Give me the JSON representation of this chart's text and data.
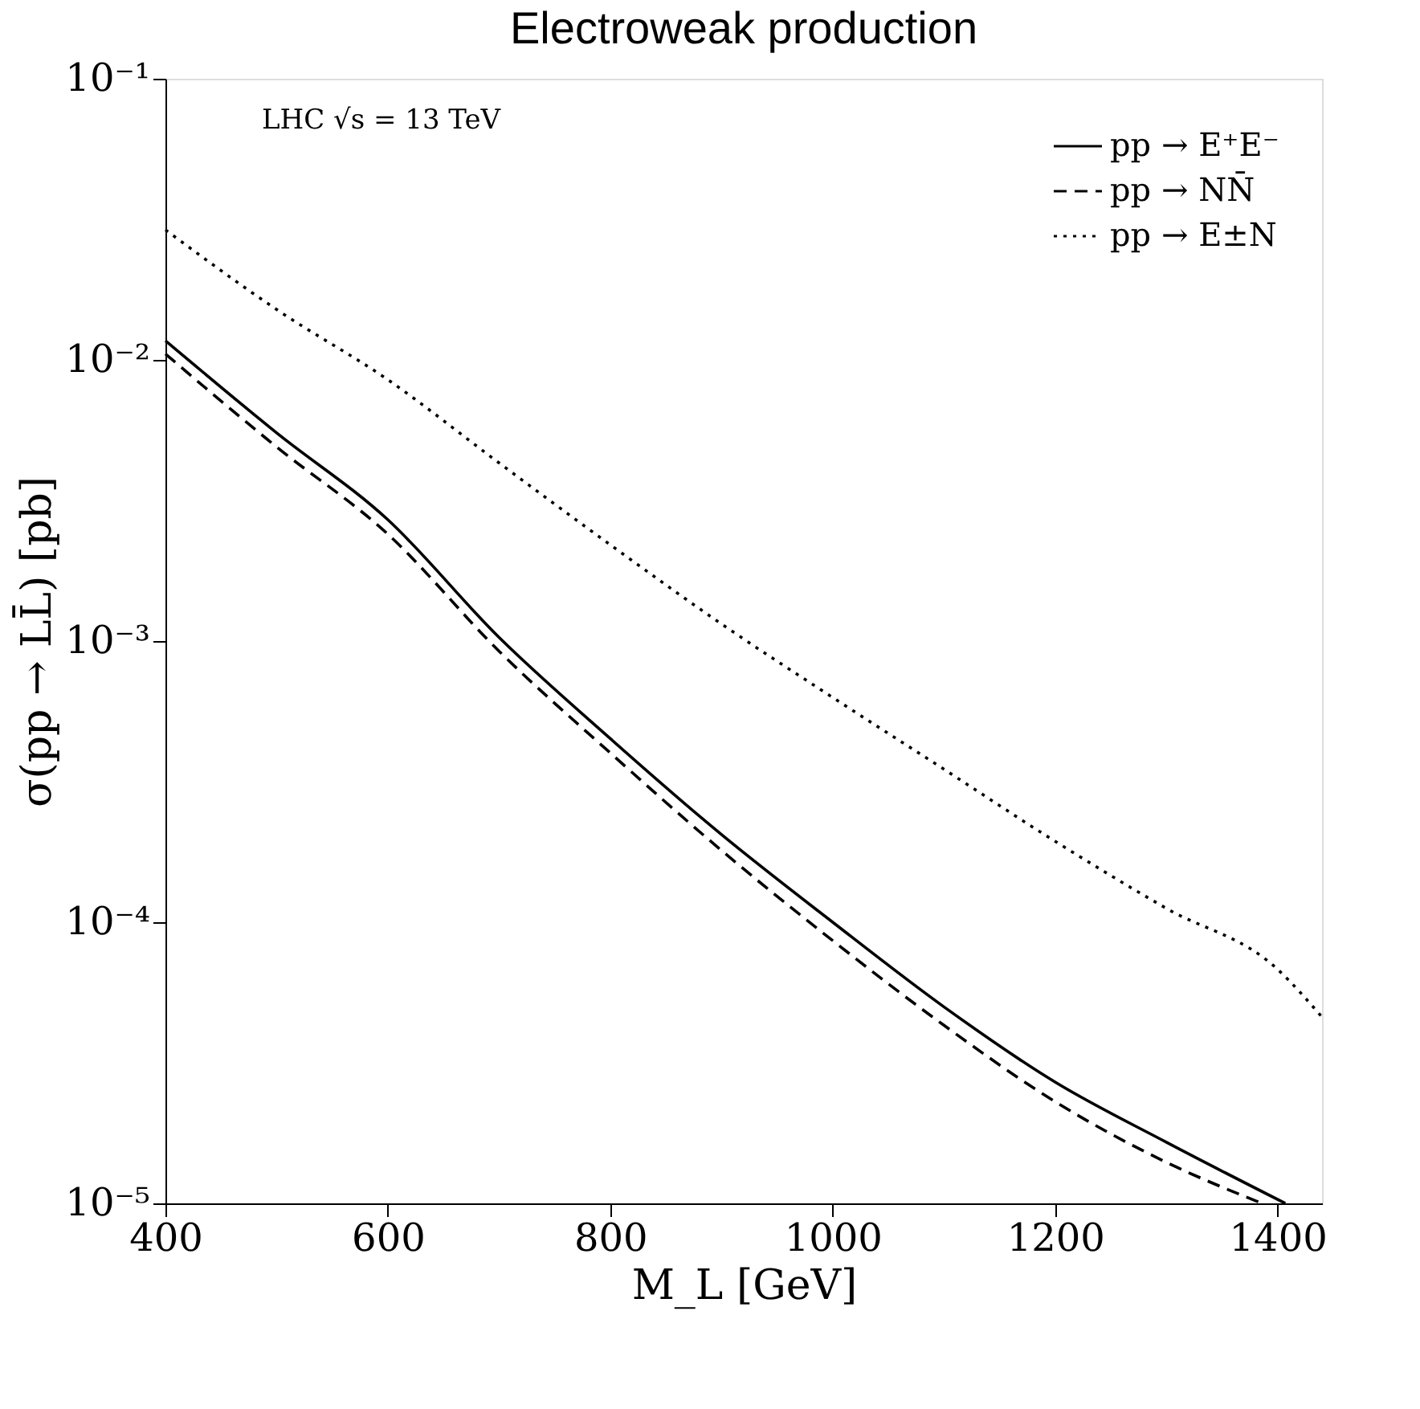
{
  "chart_data": {
    "type": "line",
    "title": "Electroweak production",
    "xlabel": "M_L [GeV]",
    "ylabel": "σ(pp → LL̄) [pb]",
    "annotations": [
      "LHC √s = 13 TeV"
    ],
    "xlim": [
      400,
      1440
    ],
    "xticks": [
      400,
      600,
      800,
      1000,
      1200,
      1400
    ],
    "ylim": [
      1e-05,
      0.1
    ],
    "yticks": [
      {
        "value": 0.1,
        "label": "10⁻¹"
      },
      {
        "value": 0.01,
        "label": "10⁻²"
      },
      {
        "value": 0.001,
        "label": "10⁻³"
      },
      {
        "value": 0.0001,
        "label": "10⁻⁴"
      },
      {
        "value": 1e-05,
        "label": "10⁻⁵"
      }
    ],
    "log": "y",
    "grid": false,
    "legend": "top right",
    "marker": "none",
    "series": [
      {
        "name": "pp → E⁺E⁻",
        "color": "#000000",
        "line_style": "solid",
        "x": [
          400,
          500,
          600,
          700,
          800,
          900,
          1000,
          1100,
          1200,
          1300,
          1407
        ],
        "values": [
          0.0117,
          0.0055,
          0.0027,
          0.00103,
          0.00045,
          0.000205,
          0.0001,
          5e-05,
          2.7e-05,
          1.65e-05,
          1e-05
        ]
      },
      {
        "name": "pp → NN̄",
        "color": "#000000",
        "line_style": "dashed",
        "x": [
          400,
          500,
          600,
          700,
          800,
          900,
          1000,
          1100,
          1200,
          1300,
          1386
        ],
        "values": [
          0.0105,
          0.0049,
          0.0024,
          0.00092,
          0.0004,
          0.00018,
          8.6e-05,
          4.3e-05,
          2.3e-05,
          1.4e-05,
          1e-05
        ]
      },
      {
        "name": "pp → E±N",
        "color": "#000000",
        "line_style": "dotted",
        "x": [
          400,
          500,
          600,
          700,
          800,
          900,
          1000,
          1100,
          1200,
          1300,
          1400,
          1440
        ],
        "values": [
          0.029,
          0.0151,
          0.0085,
          0.0043,
          0.0022,
          0.00115,
          0.00063,
          0.00035,
          0.000194,
          0.000112,
          6.8e-05,
          4.6e-05
        ]
      }
    ]
  }
}
